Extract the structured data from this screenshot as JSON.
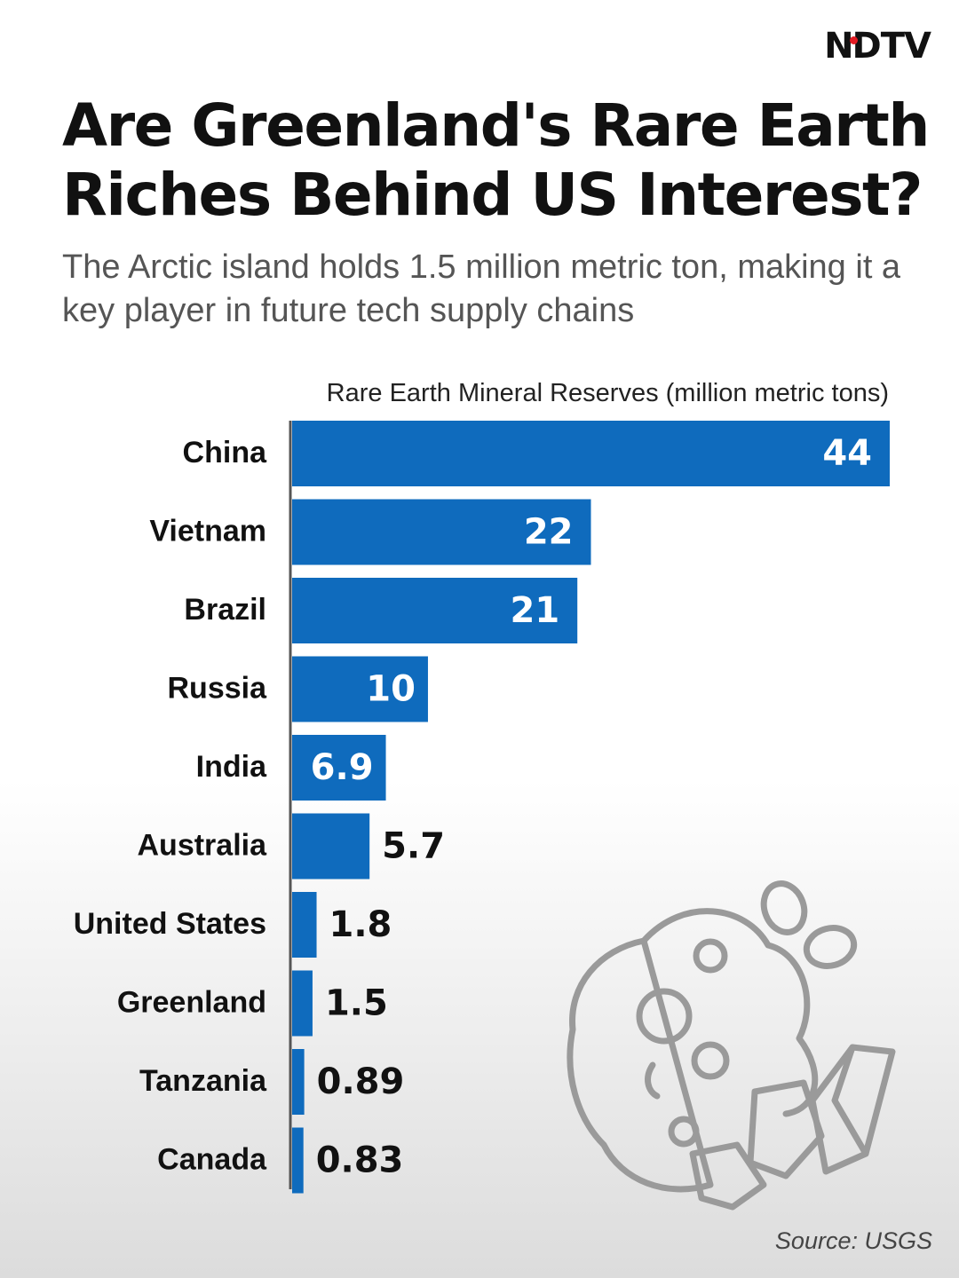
{
  "brand": {
    "logo_text_left": "N",
    "logo_text_right": "DTV",
    "accent_dot": "#e31b23"
  },
  "header": {
    "title": "Are Greenland's Rare Earth Riches Behind US Interest?",
    "subtitle": "The Arctic island holds 1.5 million metric ton, making it a key player in future tech supply chains"
  },
  "chart_data": {
    "type": "bar",
    "orientation": "horizontal",
    "title": "Rare Earth Mineral Reserves (million metric tons)",
    "categories": [
      "China",
      "Vietnam",
      "Brazil",
      "Russia",
      "India",
      "Australia",
      "United States",
      "Greenland",
      "Tanzania",
      "Canada"
    ],
    "values": [
      44,
      22,
      21,
      10,
      6.9,
      5.7,
      1.8,
      1.5,
      0.89,
      0.83
    ],
    "value_labels": [
      "44",
      "22",
      "21",
      "10",
      "6.9",
      "5.7",
      "1.8",
      "1.5",
      "0.89",
      "0.83"
    ],
    "xlim": [
      0,
      44
    ],
    "bar_color": "#0f6bbd",
    "label_inside_color": "#ffffff",
    "label_outside_color": "#111111"
  },
  "footer": {
    "source": "Source: USGS"
  },
  "decoration": {
    "icon": "rare-earth-minerals-icon"
  }
}
